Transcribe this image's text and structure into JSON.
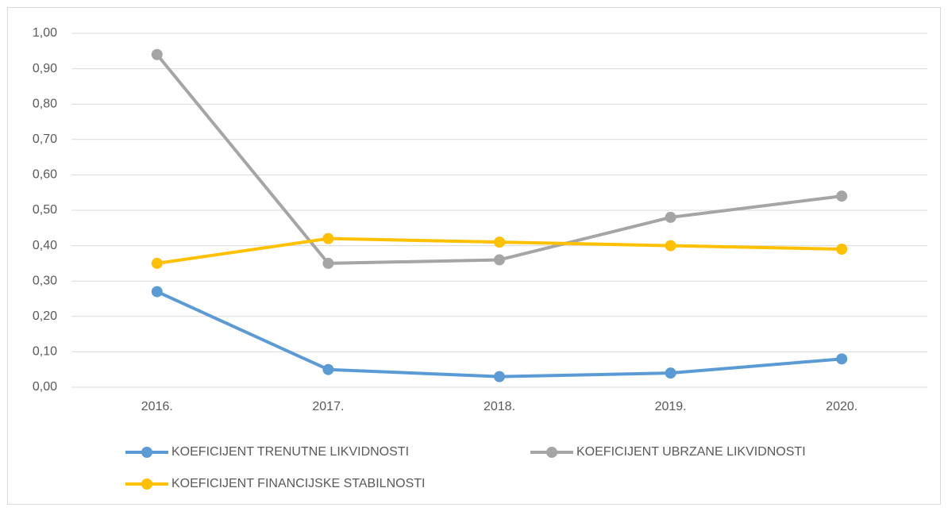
{
  "chart_data": {
    "type": "line",
    "categories": [
      "2016.",
      "2017.",
      "2018.",
      "2019.",
      "2020."
    ],
    "series": [
      {
        "name": "KOEFICIJENT TRENUTNE LIKVIDNOSTI",
        "color": "#5b9bd5",
        "values": [
          0.27,
          0.05,
          0.03,
          0.04,
          0.08
        ]
      },
      {
        "name": "KOEFICIJENT UBRZANE LIKVIDNOSTI",
        "color": "#a5a5a5",
        "values": [
          0.94,
          0.35,
          0.36,
          0.48,
          0.54
        ]
      },
      {
        "name": "KOEFICIJENT FINANCIJSKE STABILNOSTI",
        "color": "#ffc000",
        "values": [
          0.35,
          0.42,
          0.41,
          0.4,
          0.39
        ]
      }
    ],
    "ylim": [
      0,
      1
    ],
    "yticks": [
      {
        "value": 0,
        "label": "0,00"
      },
      {
        "value": 0.1,
        "label": "0,10"
      },
      {
        "value": 0.2,
        "label": "0,20"
      },
      {
        "value": 0.3,
        "label": "0,30"
      },
      {
        "value": 0.4,
        "label": "0,40"
      },
      {
        "value": 0.5,
        "label": "0,50"
      },
      {
        "value": 0.6,
        "label": "0,60"
      },
      {
        "value": 0.7,
        "label": "0,70"
      },
      {
        "value": 0.8,
        "label": "0,80"
      },
      {
        "value": 0.9,
        "label": "0,90"
      },
      {
        "value": 1,
        "label": "1,00"
      }
    ],
    "grid": true,
    "legend": "bottom"
  }
}
